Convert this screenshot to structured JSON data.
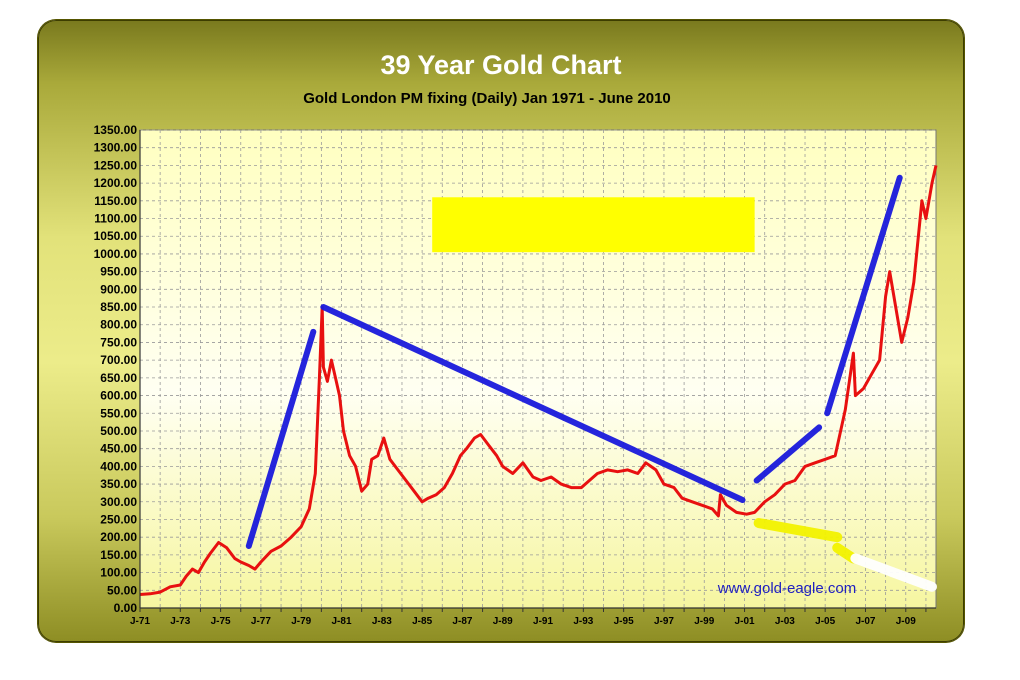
{
  "chart_data": {
    "type": "line",
    "title": "39 Year Gold Chart",
    "subtitle": "Gold London PM fixing (Daily) Jan 1971 - June 2010",
    "xlabel": "",
    "ylabel": "",
    "xlim": [
      1971.0,
      2010.5
    ],
    "ylim": [
      0,
      1350
    ],
    "grid": true,
    "ytick_labels": [
      "0.00",
      "50.00",
      "100.00",
      "150.00",
      "200.00",
      "250.00",
      "300.00",
      "350.00",
      "400.00",
      "450.00",
      "500.00",
      "550.00",
      "600.00",
      "650.00",
      "700.00",
      "750.00",
      "800.00",
      "850.00",
      "900.00",
      "950.00",
      "1000.00",
      "1050.00",
      "1100.00",
      "1150.00",
      "1200.00",
      "1250.00",
      "1300.00",
      "1350.00"
    ],
    "xtick_labels": [
      "J-71",
      "J-73",
      "J-75",
      "J-77",
      "J-79",
      "J-81",
      "J-83",
      "J-85",
      "J-87",
      "J-89",
      "J-91",
      "J-93",
      "J-95",
      "J-97",
      "J-99",
      "J-01",
      "J-03",
      "J-05",
      "J-07",
      "J-09"
    ],
    "series": [
      {
        "color": "#e81010",
        "x": [
          1971.0,
          1971.5,
          1972.0,
          1972.5,
          1973.0,
          1973.3,
          1973.6,
          1973.9,
          1974.2,
          1974.5,
          1974.9,
          1975.3,
          1975.7,
          1976.0,
          1976.4,
          1976.7,
          1977.0,
          1977.5,
          1978.0,
          1978.5,
          1979.0,
          1979.4,
          1979.7,
          1979.9,
          1980.04,
          1980.1,
          1980.3,
          1980.5,
          1980.7,
          1980.9,
          1981.1,
          1981.4,
          1981.7,
          1982.0,
          1982.3,
          1982.5,
          1982.8,
          1983.1,
          1983.4,
          1983.8,
          1984.2,
          1984.6,
          1985.0,
          1985.3,
          1985.7,
          1986.1,
          1986.5,
          1986.9,
          1987.2,
          1987.6,
          1987.9,
          1988.3,
          1988.7,
          1989.0,
          1989.5,
          1990.0,
          1990.5,
          1990.9,
          1991.4,
          1991.9,
          1992.4,
          1992.9,
          1993.3,
          1993.7,
          1994.2,
          1994.7,
          1995.2,
          1995.7,
          1996.1,
          1996.6,
          1997.0,
          1997.5,
          1997.9,
          1998.4,
          1998.9,
          1999.4,
          1999.7,
          1999.8,
          2000.1,
          2000.6,
          2001.1,
          2001.5,
          2002.0,
          2002.5,
          2003.0,
          2003.5,
          2004.0,
          2004.5,
          2005.0,
          2005.5,
          2006.0,
          2006.4,
          2006.5,
          2006.9,
          2007.3,
          2007.7,
          2008.0,
          2008.2,
          2008.5,
          2008.8,
          2009.1,
          2009.4,
          2009.8,
          2010.0,
          2010.3,
          2010.5
        ],
        "y": [
          38,
          40,
          45,
          60,
          65,
          90,
          110,
          100,
          130,
          155,
          185,
          170,
          140,
          130,
          120,
          110,
          130,
          160,
          175,
          200,
          230,
          280,
          380,
          650,
          850,
          680,
          640,
          700,
          650,
          600,
          500,
          430,
          400,
          330,
          350,
          420,
          430,
          480,
          420,
          390,
          360,
          330,
          300,
          310,
          320,
          340,
          380,
          430,
          450,
          480,
          490,
          460,
          430,
          400,
          380,
          410,
          370,
          360,
          370,
          350,
          340,
          340,
          360,
          380,
          390,
          385,
          390,
          380,
          410,
          390,
          350,
          340,
          310,
          300,
          290,
          280,
          260,
          320,
          290,
          270,
          265,
          270,
          300,
          320,
          350,
          360,
          400,
          410,
          420,
          430,
          560,
          720,
          600,
          620,
          660,
          700,
          880,
          950,
          850,
          750,
          820,
          920,
          1150,
          1100,
          1200,
          1250
        ]
      }
    ],
    "annotations": [
      {
        "color": "#1a1adc",
        "x": [
          1976.4,
          1979.6
        ],
        "y": [
          175,
          780
        ]
      },
      {
        "color": "#1a1adc",
        "x": [
          1980.1,
          2000.9
        ],
        "y": [
          850,
          305
        ]
      },
      {
        "color": "#1a1adc",
        "x": [
          2001.6,
          2004.7
        ],
        "y": [
          360,
          510
        ]
      },
      {
        "color": "#1a1adc",
        "x": [
          2005.1,
          2008.7
        ],
        "y": [
          550,
          1215
        ]
      },
      {
        "color": "#f3f300",
        "x": [
          2001.7,
          2005.6
        ],
        "y": [
          240,
          200
        ]
      },
      {
        "color": "#f3f300",
        "x": [
          2005.6,
          2006.4
        ],
        "y": [
          170,
          140
        ]
      },
      {
        "color": "#ffffff",
        "x": [
          2006.5,
          2010.3
        ],
        "y": [
          140,
          60
        ]
      }
    ],
    "highlight_box": {
      "color": "#ffff00",
      "x": [
        1985.5,
        2001.5
      ],
      "y": [
        1005,
        1160
      ]
    },
    "watermark": "www.gold-eagle.com"
  }
}
